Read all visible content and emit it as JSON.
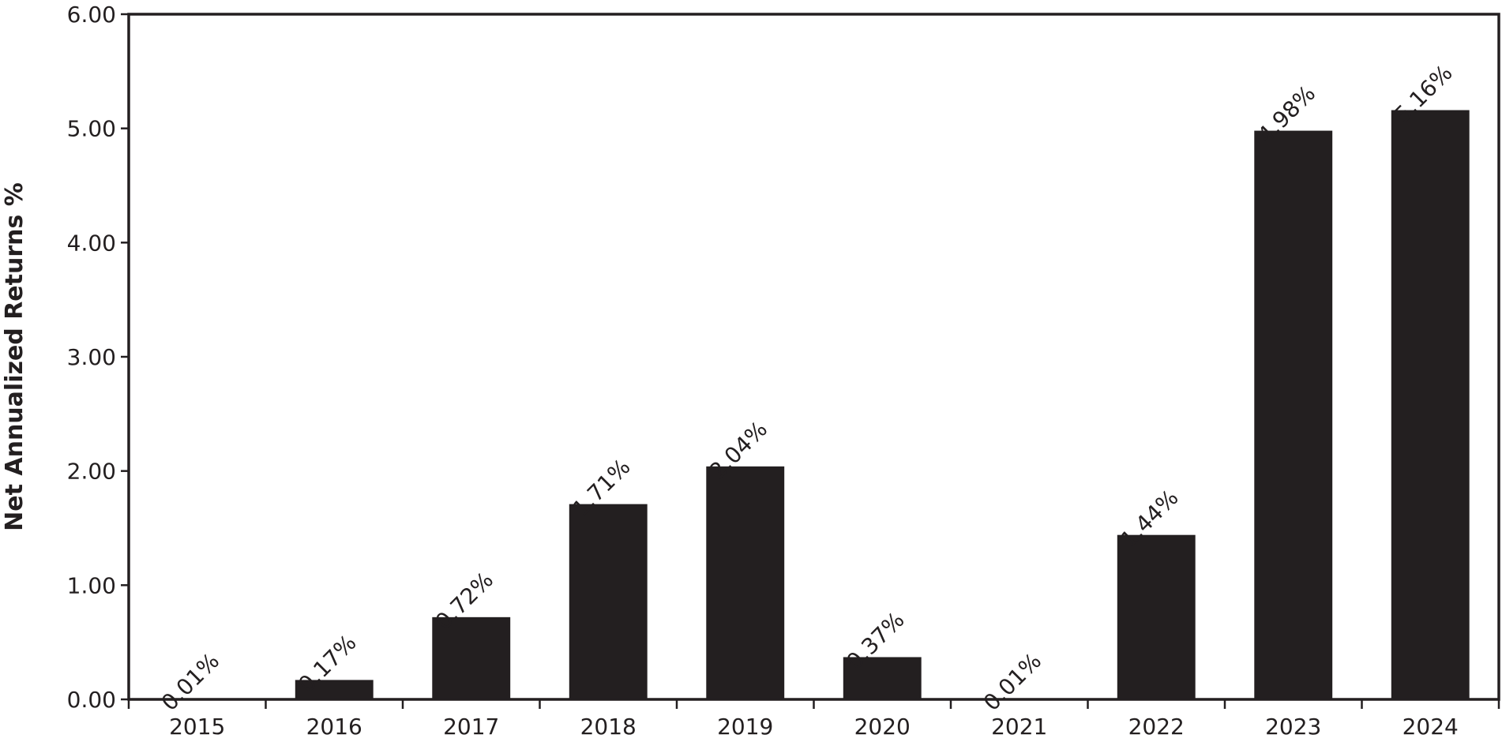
{
  "chart_data": {
    "type": "bar",
    "categories": [
      "2015",
      "2016",
      "2017",
      "2018",
      "2019",
      "2020",
      "2021",
      "2022",
      "2023",
      "2024"
    ],
    "values": [
      0.01,
      0.17,
      0.72,
      1.71,
      2.04,
      0.37,
      0.01,
      1.44,
      4.98,
      5.16
    ],
    "data_labels": [
      "0.01%",
      "0.17%",
      "0.72%",
      "1.71%",
      "2.04%",
      "0.37%",
      "0.01%",
      "1.44%",
      "4.98%",
      "5.16%"
    ],
    "ylabel": "Net Annualized Returns %",
    "xlabel": "",
    "title": "",
    "ylim": [
      0,
      6
    ],
    "yticks": [
      "0.00",
      "1.00",
      "2.00",
      "3.00",
      "4.00",
      "5.00",
      "6.00"
    ],
    "grid": false,
    "legend": "none",
    "bar_color": "#231f20",
    "axis_color": "#231f20",
    "text_color": "#231f20",
    "background_color": "#ffffff"
  }
}
